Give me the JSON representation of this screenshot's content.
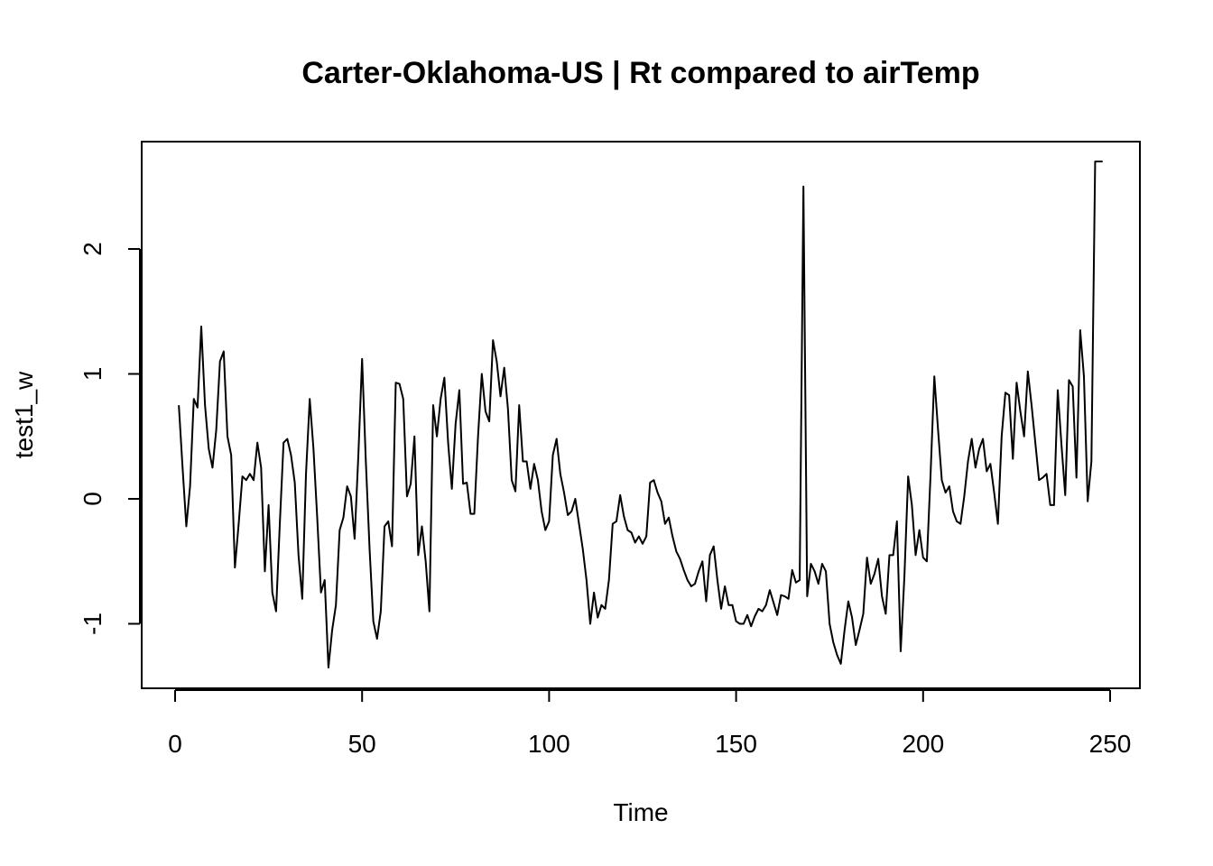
{
  "chart_data": {
    "type": "line",
    "title": "Carter-Oklahoma-US | Rt compared to airTemp",
    "xlabel": "Time",
    "ylabel": "test1_w",
    "xlim": [
      0,
      250
    ],
    "ylim": [
      -1.4,
      2.8
    ],
    "xticks": [
      0,
      50,
      100,
      150,
      200,
      250
    ],
    "yticks": [
      -1,
      0,
      1,
      2
    ],
    "xtick_labels": [
      "0",
      "50",
      "100",
      "150",
      "200",
      "250"
    ],
    "ytick_labels": [
      "-1",
      "0",
      "1",
      "2"
    ],
    "grid": false,
    "series": [
      {
        "x": [
          1,
          2,
          3,
          4,
          5,
          6,
          7,
          8,
          9,
          10,
          11,
          12,
          13,
          14,
          15,
          16,
          17,
          18,
          19,
          20,
          21,
          22,
          23,
          24,
          25,
          26,
          27,
          28,
          29,
          30,
          31,
          32,
          33,
          34,
          35,
          36,
          37,
          38,
          39,
          40,
          41,
          42,
          43,
          44,
          45,
          46,
          47,
          48,
          49,
          50,
          51,
          52,
          53,
          54,
          55,
          56,
          57,
          58,
          59,
          60,
          61,
          62,
          63,
          64,
          65,
          66,
          67,
          68,
          69,
          70,
          71,
          72,
          73,
          74,
          75,
          76,
          77,
          78,
          79,
          80,
          81,
          82,
          83,
          84,
          85,
          86,
          87,
          88,
          89,
          90,
          91,
          92,
          93,
          94,
          95,
          96,
          97,
          98,
          99,
          100,
          101,
          102,
          103,
          104,
          105,
          106,
          107,
          108,
          109,
          110,
          111,
          112,
          113,
          114,
          115,
          116,
          117,
          118,
          119,
          120,
          121,
          122,
          123,
          124,
          125,
          126,
          127,
          128,
          129,
          130,
          131,
          132,
          133,
          134,
          135,
          136,
          137,
          138,
          139,
          140,
          141,
          142,
          143,
          144,
          145,
          146,
          147,
          148,
          149,
          150,
          151,
          152,
          153,
          154,
          155,
          156,
          157,
          158,
          159,
          160,
          161,
          162,
          163,
          164,
          165,
          166,
          167,
          168,
          169,
          170,
          171,
          172,
          173,
          174,
          175,
          176,
          177,
          178,
          179,
          180,
          181,
          182,
          183,
          184,
          185,
          186,
          187,
          188,
          189,
          190,
          191,
          192,
          193,
          194,
          195,
          196,
          197,
          198,
          199,
          200,
          201,
          202,
          203,
          204,
          205,
          206,
          207,
          208,
          209,
          210,
          211,
          212,
          213,
          214,
          215,
          216,
          217,
          218,
          219,
          220,
          221,
          222,
          223,
          224,
          225,
          226,
          227,
          228,
          229,
          230,
          231,
          232,
          233,
          234,
          235,
          236,
          237,
          238,
          239,
          240,
          241,
          242,
          243,
          244,
          245,
          246,
          247,
          248
        ],
        "y": [
          0.75,
          0.25,
          -0.22,
          0.1,
          0.8,
          0.73,
          1.38,
          0.75,
          0.4,
          0.25,
          0.55,
          1.1,
          1.18,
          0.5,
          0.35,
          -0.55,
          -0.2,
          0.18,
          0.15,
          0.2,
          0.15,
          0.45,
          0.25,
          -0.58,
          -0.05,
          -0.75,
          -0.9,
          -0.2,
          0.45,
          0.48,
          0.35,
          0.13,
          -0.45,
          -0.8,
          0.2,
          0.8,
          0.4,
          -0.15,
          -0.75,
          -0.65,
          -1.35,
          -1.05,
          -0.85,
          -0.25,
          -0.15,
          0.1,
          0.02,
          -0.32,
          0.35,
          1.12,
          0.3,
          -0.4,
          -0.98,
          -1.12,
          -0.9,
          -0.22,
          -0.18,
          -0.38,
          0.93,
          0.92,
          0.8,
          0.02,
          0.12,
          0.5,
          -0.45,
          -0.22,
          -0.5,
          -0.9,
          0.75,
          0.5,
          0.8,
          0.97,
          0.45,
          0.08,
          0.6,
          0.87,
          0.12,
          0.13,
          -0.12,
          -0.12,
          0.5,
          1.0,
          0.7,
          0.62,
          1.27,
          1.1,
          0.82,
          1.05,
          0.72,
          0.15,
          0.06,
          0.75,
          0.3,
          0.3,
          0.08,
          0.28,
          0.15,
          -0.1,
          -0.25,
          -0.18,
          0.35,
          0.48,
          0.2,
          0.05,
          -0.13,
          -0.1,
          0.0,
          -0.2,
          -0.4,
          -0.65,
          -1.0,
          -0.75,
          -0.95,
          -0.85,
          -0.88,
          -0.65,
          -0.2,
          -0.18,
          0.03,
          -0.14,
          -0.25,
          -0.27,
          -0.35,
          -0.3,
          -0.36,
          -0.3,
          0.13,
          0.15,
          0.05,
          -0.02,
          -0.2,
          -0.15,
          -0.3,
          -0.42,
          -0.48,
          -0.57,
          -0.65,
          -0.7,
          -0.68,
          -0.58,
          -0.5,
          -0.82,
          -0.45,
          -0.38,
          -0.65,
          -0.88,
          -0.7,
          -0.85,
          -0.85,
          -0.98,
          -1.0,
          -1.0,
          -0.93,
          -1.02,
          -0.94,
          -0.88,
          -0.9,
          -0.85,
          -0.73,
          -0.83,
          -0.93,
          -0.77,
          -0.78,
          -0.8,
          -0.57,
          -0.67,
          -0.65,
          2.5,
          -0.78,
          -0.52,
          -0.58,
          -0.68,
          -0.52,
          -0.58,
          -1.0,
          -1.15,
          -1.25,
          -1.32,
          -1.05,
          -0.82,
          -0.95,
          -1.17,
          -1.05,
          -0.92,
          -0.47,
          -0.68,
          -0.6,
          -0.48,
          -0.78,
          -0.92,
          -0.45,
          -0.45,
          -0.18,
          -1.22,
          -0.62,
          0.18,
          -0.05,
          -0.45,
          -0.25,
          -0.47,
          -0.5,
          0.2,
          0.98,
          0.55,
          0.15,
          0.05,
          0.1,
          -0.1,
          -0.18,
          -0.2,
          0.02,
          0.3,
          0.48,
          0.25,
          0.4,
          0.48,
          0.22,
          0.28,
          0.05,
          -0.2,
          0.5,
          0.85,
          0.83,
          0.32,
          0.93,
          0.7,
          0.5,
          1.02,
          0.75,
          0.45,
          0.15,
          0.17,
          0.2,
          -0.05,
          -0.05,
          0.87,
          0.43,
          0.03,
          0.95,
          0.9,
          0.17,
          1.35,
          0.98,
          -0.02,
          0.3,
          2.7,
          2.7,
          2.7
        ]
      }
    ]
  }
}
